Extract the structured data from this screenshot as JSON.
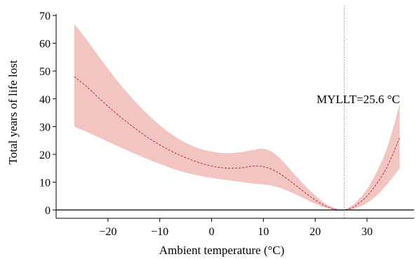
{
  "chart_data": {
    "type": "line",
    "title": "",
    "xlabel": "Ambient temperature (°C)",
    "ylabel": "Total years of life lost",
    "xlim": [
      -30,
      38
    ],
    "ylim": [
      -3,
      70
    ],
    "x_ticks": [
      -20,
      -10,
      0,
      10,
      20,
      30
    ],
    "x_tick_labels": [
      "−20",
      "−10",
      "0",
      "10",
      "20",
      "30"
    ],
    "y_ticks": [
      0,
      10,
      20,
      30,
      40,
      50,
      60,
      70
    ],
    "y_tick_labels": [
      "0",
      "10",
      "20",
      "30",
      "40",
      "50",
      "60",
      "70"
    ],
    "grid": false,
    "colors": {
      "band": "#f2c4c2",
      "line": "#b03a3a",
      "ref": "#999999",
      "axis": "#000000"
    },
    "series": [
      {
        "x": [
          -26.5,
          -24,
          -22,
          -20,
          -18,
          -16,
          -14,
          -12,
          -10,
          -8,
          -6,
          -4,
          -2,
          0,
          2,
          4,
          6,
          8,
          10,
          12,
          14,
          16,
          18,
          20,
          22,
          24,
          25.6,
          27,
          28,
          30,
          32,
          34,
          36.3
        ],
        "values": [
          48,
          44.2,
          40.7,
          37.3,
          34.1,
          31.1,
          28.3,
          25.7,
          23.4,
          21.4,
          19.6,
          18.1,
          16.8,
          15.8,
          15.2,
          15.0,
          15.2,
          15.8,
          15.6,
          14.3,
          12.0,
          9.2,
          6.3,
          3.6,
          1.4,
          0.2,
          0,
          0.7,
          1.8,
          5.0,
          9.8,
          16.0,
          26
        ],
        "lower": [
          30,
          28.0,
          26.3,
          24.6,
          22.9,
          21.2,
          19.6,
          18.0,
          16.6,
          15.2,
          14.0,
          13.0,
          12.2,
          11.5,
          11.0,
          10.5,
          10.0,
          9.5,
          9.2,
          8.6,
          7.4,
          5.8,
          4.0,
          2.2,
          0.8,
          0,
          -0.3,
          0.2,
          0.8,
          2.5,
          5.5,
          9.5,
          15
        ],
        "upper": [
          67,
          61.0,
          55.8,
          50.8,
          46.0,
          41.6,
          37.5,
          33.8,
          30.5,
          27.6,
          25.2,
          23.3,
          21.9,
          21.0,
          20.5,
          20.5,
          20.9,
          21.6,
          22.0,
          20.5,
          17.0,
          12.8,
          8.8,
          5.2,
          2.2,
          0.5,
          0.2,
          1.5,
          3.0,
          7.5,
          14.2,
          23.0,
          38
        ]
      }
    ],
    "reference_line": {
      "x": 25.6,
      "label": "MYLLT=25.6 °C",
      "label_x": 28.3,
      "label_y": 40
    },
    "zero_line": 0
  }
}
